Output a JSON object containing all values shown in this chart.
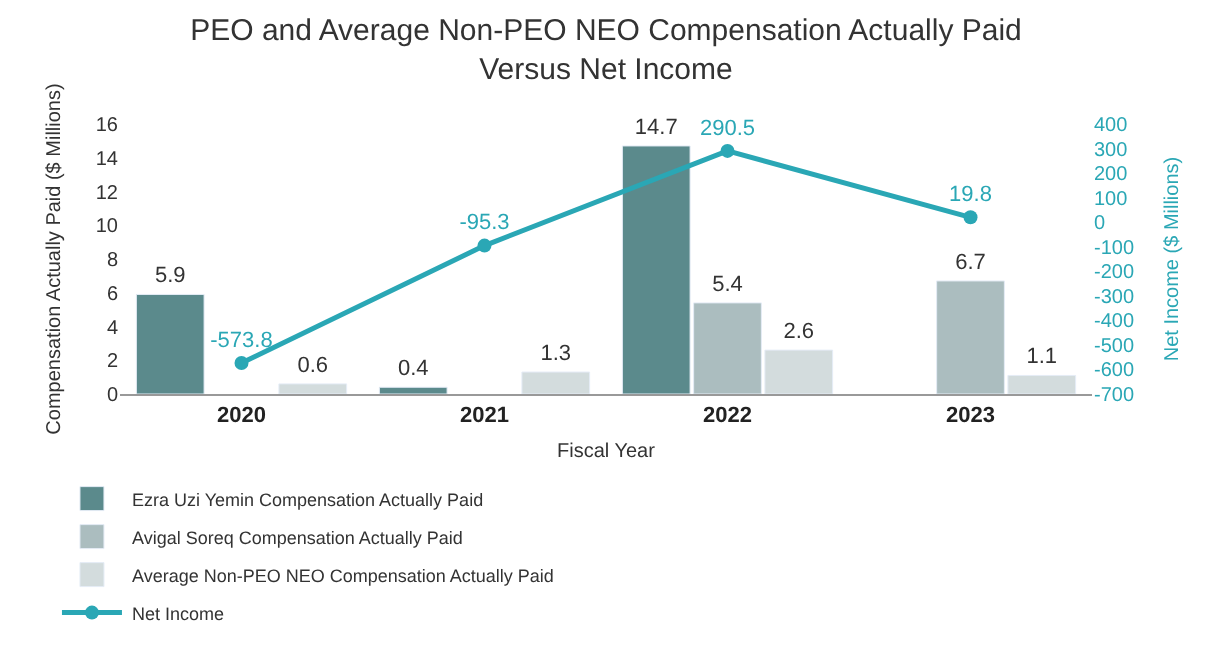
{
  "chart_data": {
    "type": "bar",
    "title": "PEO and Average Non-PEO NEO Compensation Actually Paid\nVersus Net Income",
    "xlabel": "Fiscal Year",
    "ylabel": "Compensation Actually Paid ($ Millions)",
    "y2label": "Net Income ($ Millions)",
    "categories": [
      "2020",
      "2021",
      "2022",
      "2023"
    ],
    "series": [
      {
        "name": "Ezra Uzi Yemin Compensation Actually Paid",
        "color": "#5b8a8c",
        "values": [
          5.9,
          0.4,
          14.7,
          null
        ]
      },
      {
        "name": "Avigal Soreq Compensation Actually Paid",
        "color": "#abbdbf",
        "values": [
          null,
          null,
          5.4,
          6.7
        ]
      },
      {
        "name": "Average Non-PEO NEO Compensation Actually Paid",
        "color": "#d3dcdd",
        "values": [
          0.6,
          1.3,
          2.6,
          1.1
        ]
      },
      {
        "name": "Net Income",
        "type": "line",
        "axis": "y2",
        "color": "#2aa7b5",
        "values": [
          -573.8,
          -95.3,
          290.5,
          19.8
        ]
      }
    ],
    "ylim": [
      0,
      16
    ],
    "yticks": [
      0,
      2,
      4,
      6,
      8,
      10,
      12,
      14,
      16
    ],
    "y2lim": [
      -700,
      400
    ],
    "y2ticks": [
      -700,
      -600,
      -500,
      -400,
      -300,
      -200,
      -100,
      0,
      100,
      200,
      300,
      400
    ],
    "data_labels": true,
    "legend": "bottom",
    "marker": "circle",
    "line_style": "solid"
  }
}
